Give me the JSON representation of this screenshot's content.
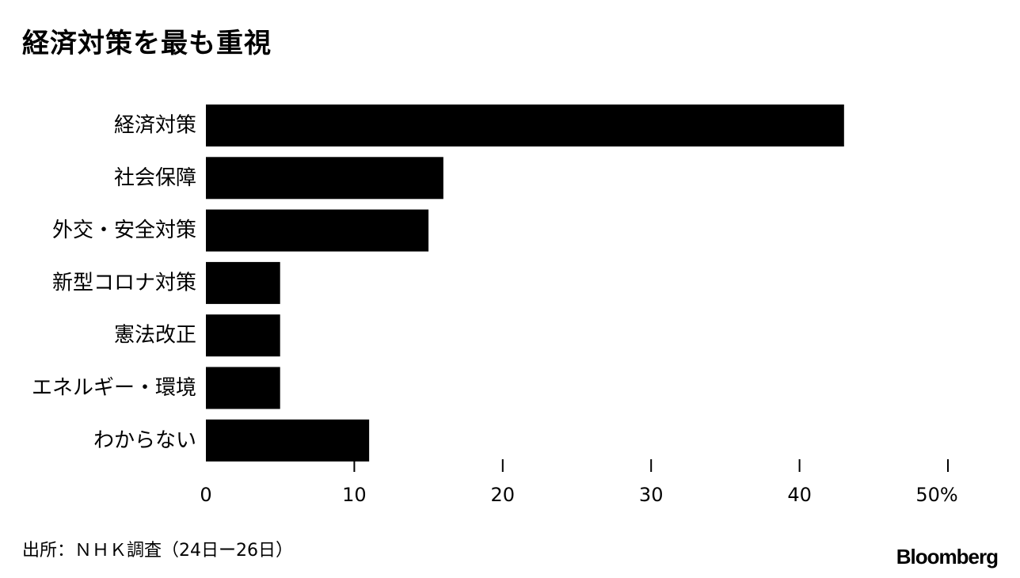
{
  "title": "経済対策を最も重視",
  "source": "出所：ＮＨＫ調査（24日ー26日）",
  "brand": "Bloomberg",
  "colors": {
    "bar": "#000000",
    "text": "#000000",
    "background": "#ffffff"
  },
  "chart_data": {
    "type": "bar",
    "orientation": "horizontal",
    "categories": [
      "経済対策",
      "社会保障",
      "外交・安全対策",
      "新型コロナ対策",
      "憲法改正",
      "エネルギー・環境",
      "わからない"
    ],
    "values": [
      43,
      16,
      15,
      5,
      5,
      5,
      11
    ],
    "xlim": [
      0,
      50
    ],
    "x_ticks": [
      0,
      10,
      20,
      30,
      40,
      50
    ],
    "x_tick_labels": [
      "0",
      "10",
      "20",
      "30",
      "40",
      "50%"
    ],
    "grid": false
  }
}
